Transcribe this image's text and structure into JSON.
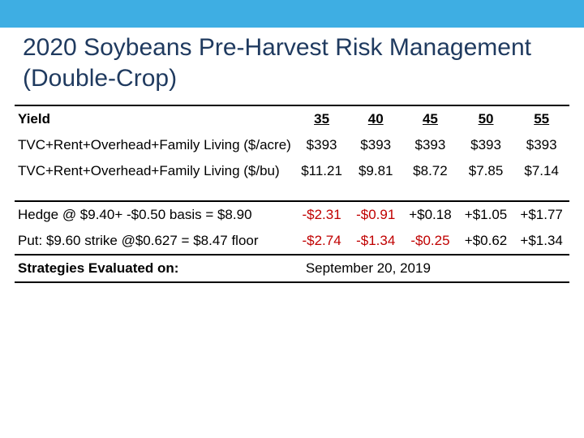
{
  "banner_color": "#3eaee3",
  "title_color": "#1f3a5f",
  "title": "2020 Soybeans Pre-Harvest Risk Management (Double-Crop)",
  "table": {
    "header_label": "Yield",
    "yields": [
      "35",
      "40",
      "45",
      "50",
      "55"
    ],
    "rows": [
      {
        "label": "TVC+Rent+Overhead+Family Living ($/acre)",
        "cells": [
          {
            "v": "$393",
            "c": "#000000"
          },
          {
            "v": "$393",
            "c": "#000000"
          },
          {
            "v": "$393",
            "c": "#000000"
          },
          {
            "v": "$393",
            "c": "#000000"
          },
          {
            "v": "$393",
            "c": "#000000"
          }
        ]
      },
      {
        "label": "TVC+Rent+Overhead+Family Living ($/bu)",
        "cells": [
          {
            "v": "$11.21",
            "c": "#000000"
          },
          {
            "v": "$9.81",
            "c": "#000000"
          },
          {
            "v": "$8.72",
            "c": "#000000"
          },
          {
            "v": "$7.85",
            "c": "#000000"
          },
          {
            "v": "$7.14",
            "c": "#000000"
          }
        ]
      }
    ],
    "strategy_rows": [
      {
        "label": "Hedge @ $9.40+ -$0.50 basis = $8.90",
        "cells": [
          {
            "v": "-$2.31",
            "c": "#c00000"
          },
          {
            "v": "-$0.91",
            "c": "#c00000"
          },
          {
            "v": "+$0.18",
            "c": "#000000"
          },
          {
            "v": "+$1.05",
            "c": "#000000"
          },
          {
            "v": "+$1.77",
            "c": "#000000"
          }
        ]
      },
      {
        "label": "Put: $9.60 strike @$0.627 = $8.47 floor",
        "cells": [
          {
            "v": "-$2.74",
            "c": "#c00000"
          },
          {
            "v": "-$1.34",
            "c": "#c00000"
          },
          {
            "v": "-$0.25",
            "c": "#c00000"
          },
          {
            "v": "+$0.62",
            "c": "#000000"
          },
          {
            "v": "+$1.34",
            "c": "#000000"
          }
        ]
      }
    ],
    "footer_label": "Strategies Evaluated on:",
    "footer_date": "September 20, 2019"
  }
}
